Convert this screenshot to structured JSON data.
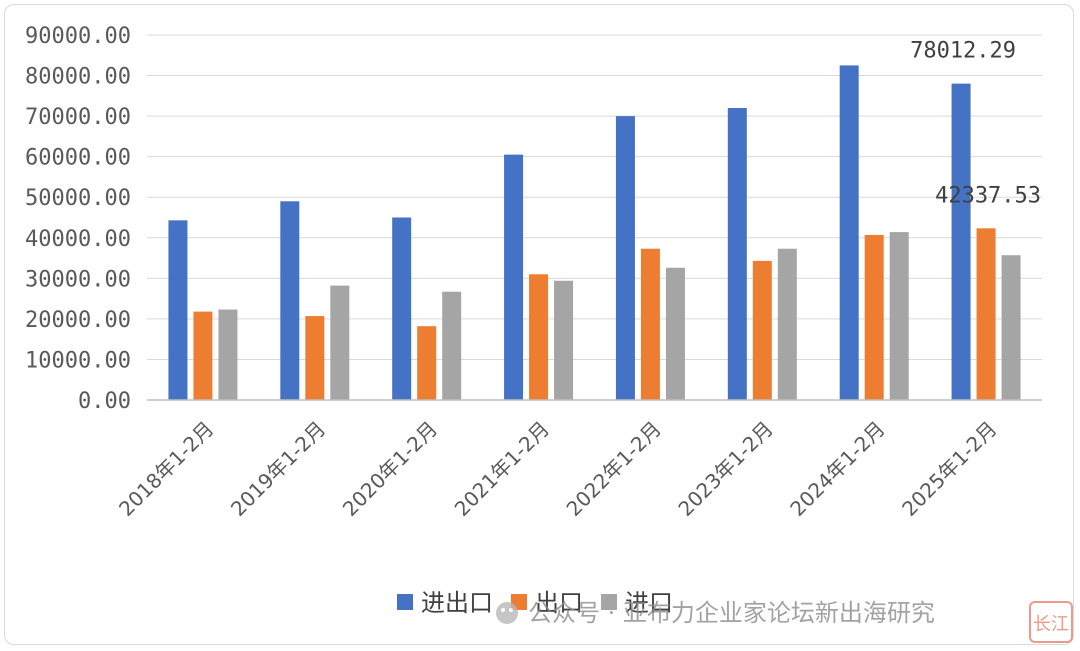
{
  "chart_data": {
    "type": "bar",
    "title": "",
    "xlabel": "",
    "ylabel": "",
    "ylim": [
      0,
      90000
    ],
    "y_ticks": [
      "0.00",
      "10000.00",
      "20000.00",
      "30000.00",
      "40000.00",
      "50000.00",
      "60000.00",
      "70000.00",
      "80000.00",
      "90000.00"
    ],
    "grid": true,
    "legend_position": "bottom",
    "categories": [
      "2018年1-2月",
      "2019年1-2月",
      "2020年1-2月",
      "2021年1-2月",
      "2022年1-2月",
      "2023年1-2月",
      "2024年1-2月",
      "2025年1-2月"
    ],
    "series": [
      {
        "name": "进出口",
        "color": "#4472C4",
        "values": [
          44300,
          49000,
          45000,
          60500,
          70000,
          72000,
          82500,
          78012.29
        ]
      },
      {
        "name": "出口",
        "color": "#ED7D31",
        "values": [
          21800,
          20700,
          18200,
          31000,
          37300,
          34300,
          40700,
          42337.53
        ]
      },
      {
        "name": "进口",
        "color": "#A5A5A5",
        "values": [
          22300,
          28200,
          26700,
          29400,
          32600,
          37300,
          41400,
          35700
        ]
      }
    ],
    "data_labels": [
      {
        "series": 0,
        "index": 7,
        "text": "78012.29"
      },
      {
        "series": 1,
        "index": 7,
        "text": "42337.53"
      }
    ]
  },
  "watermark": {
    "text": "公众号 · 亚布力企业家论坛新出海研究",
    "logo_text": "长江"
  }
}
